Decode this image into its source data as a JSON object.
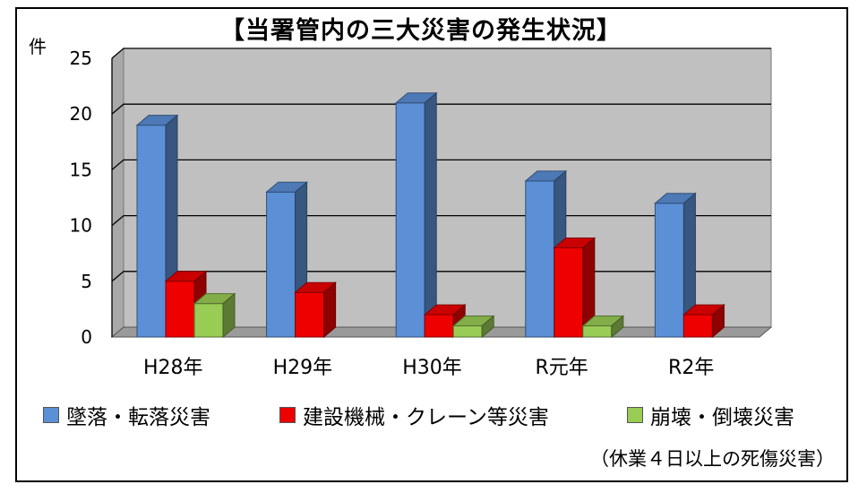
{
  "chart_data": {
    "type": "bar",
    "title": "【当署管内の三大災害の発生状況】",
    "ylabel": "件",
    "ylim": [
      0,
      25
    ],
    "yticks": [
      0,
      5,
      10,
      15,
      20,
      25
    ],
    "grid": true,
    "categories": [
      "H28年",
      "H29年",
      "H30年",
      "R元年",
      "R2年"
    ],
    "series": [
      {
        "name": "墜落・転落災害",
        "color": "#5B8FD6",
        "values": [
          19,
          13,
          21,
          14,
          12
        ]
      },
      {
        "name": "建設機械・クレーン等災害",
        "color": "#EE0000",
        "values": [
          5,
          4,
          2,
          8,
          2
        ]
      },
      {
        "name": "崩壊・倒壊災害",
        "color": "#99CC55",
        "values": [
          3,
          0,
          1,
          1,
          0
        ]
      }
    ],
    "legend_position": "bottom",
    "note": "（休業４日以上の死傷災害）"
  }
}
